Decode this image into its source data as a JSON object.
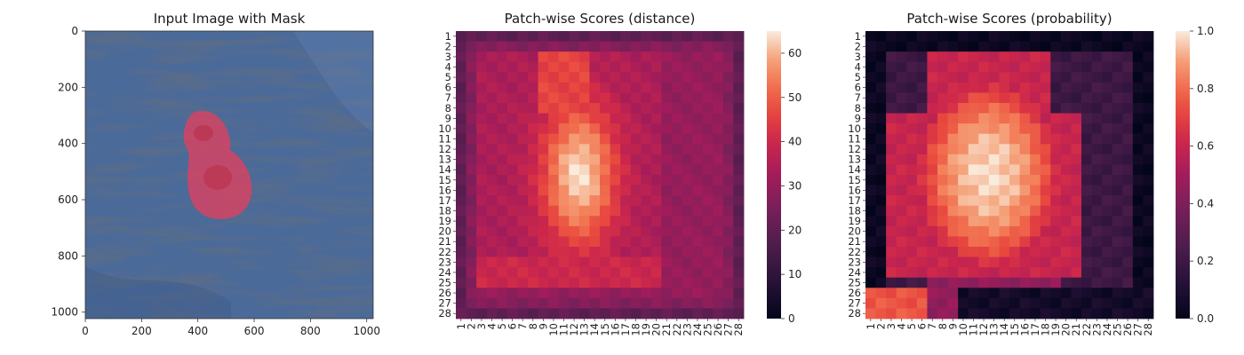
{
  "chart_data": [
    {
      "type": "image",
      "title": "Input Image with Mask",
      "xticks": [
        0,
        200,
        400,
        600,
        800,
        1000
      ],
      "yticks": [
        0,
        200,
        400,
        600,
        800,
        1000
      ],
      "xlim": [
        0,
        1023
      ],
      "ylim": [
        1023,
        0
      ],
      "colors": {
        "background": "#4a6a9a",
        "mask": "#e0405f"
      }
    },
    {
      "type": "heatmap",
      "title": "Patch-wise Scores (distance)",
      "rows": 28,
      "cols": 28,
      "xticklabels": [
        "1",
        "2",
        "3",
        "4",
        "5",
        "6",
        "7",
        "8",
        "9",
        "10",
        "11",
        "12",
        "13",
        "14",
        "15",
        "16",
        "17",
        "18",
        "19",
        "20",
        "21",
        "22",
        "23",
        "24",
        "25",
        "26",
        "27",
        "28"
      ],
      "yticklabels": [
        "1",
        "2",
        "3",
        "4",
        "5",
        "6",
        "7",
        "8",
        "9",
        "10",
        "11",
        "12",
        "13",
        "14",
        "15",
        "16",
        "17",
        "18",
        "19",
        "20",
        "21",
        "22",
        "23",
        "24",
        "25",
        "26",
        "27",
        "28"
      ],
      "colorbar": {
        "min": 0,
        "max": 65,
        "ticks": [
          "0",
          "10",
          "20",
          "30",
          "40",
          "50",
          "60"
        ]
      },
      "colormap": "rocket"
    },
    {
      "type": "heatmap",
      "title": "Patch-wise Scores (probability)",
      "rows": 28,
      "cols": 28,
      "xticklabels": [
        "1",
        "2",
        "3",
        "4",
        "5",
        "6",
        "7",
        "8",
        "9",
        "10",
        "11",
        "12",
        "13",
        "14",
        "15",
        "16",
        "17",
        "18",
        "19",
        "20",
        "21",
        "22",
        "23",
        "24",
        "25",
        "26",
        "27",
        "28"
      ],
      "yticklabels": [
        "1",
        "2",
        "3",
        "4",
        "5",
        "6",
        "7",
        "8",
        "9",
        "10",
        "11",
        "12",
        "13",
        "14",
        "15",
        "16",
        "17",
        "18",
        "19",
        "20",
        "21",
        "22",
        "23",
        "24",
        "25",
        "26",
        "27",
        "28"
      ],
      "colorbar": {
        "min": 0.0,
        "max": 1.0,
        "ticks": [
          "0.0",
          "0.2",
          "0.4",
          "0.6",
          "0.8",
          "1.0"
        ]
      },
      "colormap": "rocket"
    }
  ]
}
